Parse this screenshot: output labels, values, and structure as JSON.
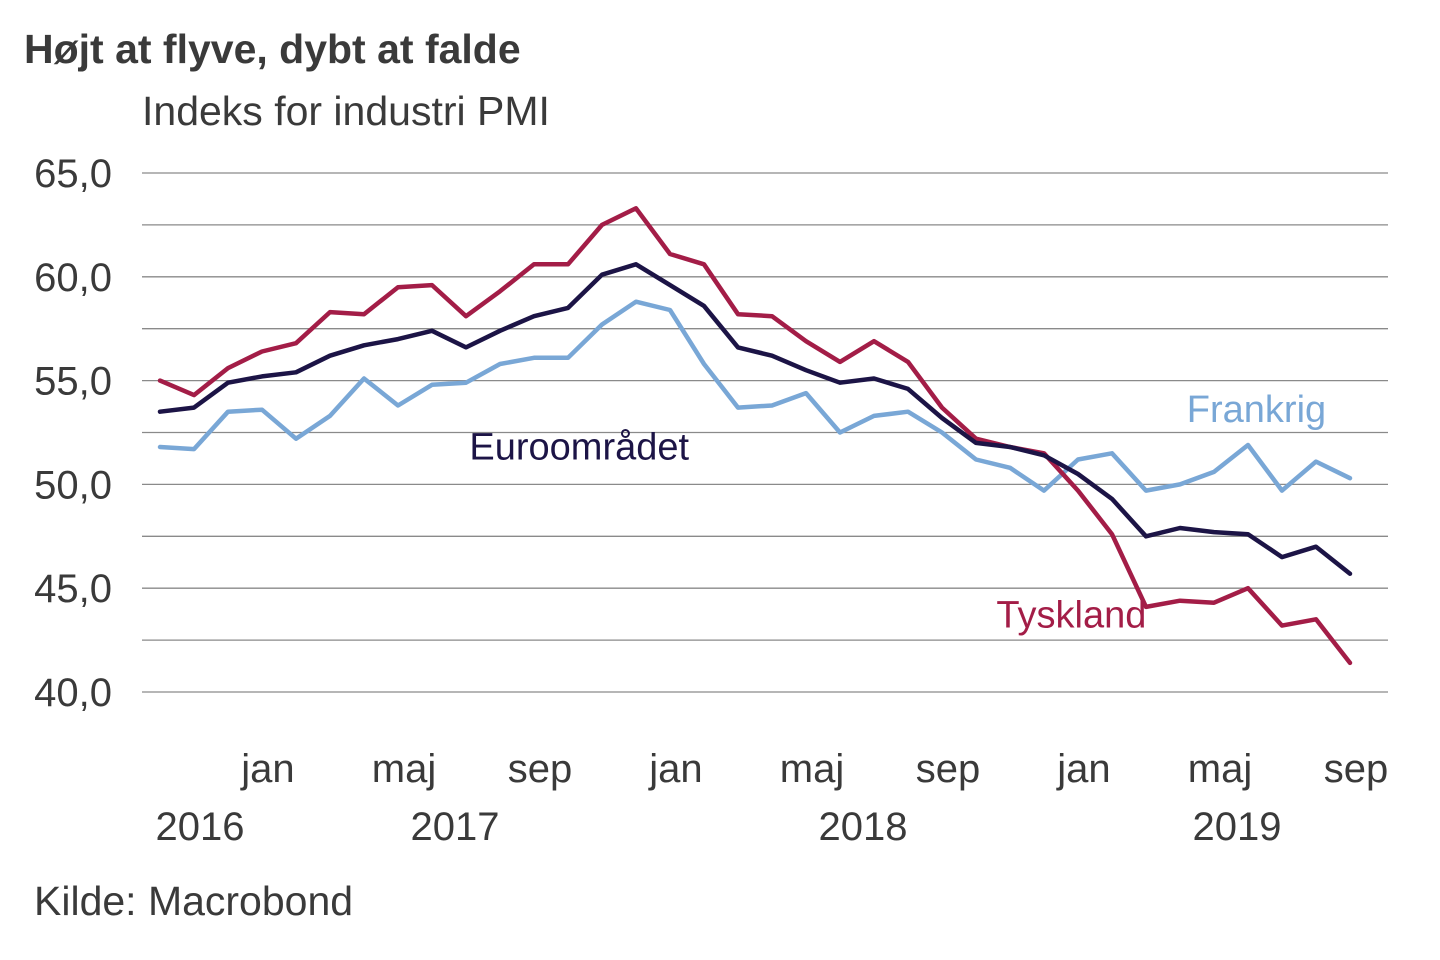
{
  "header": {
    "title": "Højt at flyve, dybt at falde",
    "subtitle": "Indeks for industri PMI"
  },
  "footer": {
    "source": "Kilde: Macrobond"
  },
  "colors": {
    "Euroområdet": "#1c1446",
    "Tyskland": "#a31d47",
    "Frankrig": "#79a7d6",
    "grid": "#8a8a8a",
    "text": "#3a3a3a"
  },
  "chart_data": {
    "type": "line",
    "title": "Højt at flyve, dybt at falde",
    "subtitle": "Indeks for industri PMI",
    "xlabel": "",
    "ylabel": "",
    "ylim": [
      40,
      65
    ],
    "yticks": [
      "40,0",
      "45,0",
      "50,0",
      "55,0",
      "60,0",
      "65,0"
    ],
    "grid": true,
    "x_start": "2016-10",
    "x_end": "2019-09",
    "month_tick_labels": [
      {
        "label": "jan",
        "index": 3
      },
      {
        "label": "maj",
        "index": 7
      },
      {
        "label": "sep",
        "index": 11
      },
      {
        "label": "jan",
        "index": 15
      },
      {
        "label": "maj",
        "index": 19
      },
      {
        "label": "sep",
        "index": 23
      },
      {
        "label": "jan",
        "index": 27
      },
      {
        "label": "maj",
        "index": 31
      },
      {
        "label": "sep",
        "index": 35
      }
    ],
    "year_tick_labels": [
      {
        "label": "2016",
        "index": 1
      },
      {
        "label": "2017",
        "index": 8.5
      },
      {
        "label": "2018",
        "index": 20.5
      },
      {
        "label": "2019",
        "index": 31.5
      }
    ],
    "series": [
      {
        "name": "Euroområdet",
        "label_text": "Euroområdet",
        "label_at": {
          "index": 9.1,
          "value": 51.2
        },
        "values": [
          53.5,
          53.7,
          54.9,
          55.2,
          55.4,
          56.2,
          56.7,
          57.0,
          57.4,
          56.6,
          57.4,
          58.1,
          58.5,
          60.1,
          60.6,
          59.6,
          58.6,
          56.6,
          56.2,
          55.5,
          54.9,
          55.1,
          54.6,
          53.2,
          52.0,
          51.8,
          51.4,
          50.5,
          49.3,
          47.5,
          47.9,
          47.7,
          47.6,
          46.5,
          47.0,
          45.7
        ]
      },
      {
        "name": "Tyskland",
        "label_text": "Tyskland",
        "label_at": {
          "index": 24.6,
          "value": 43.1
        },
        "values": [
          55.0,
          54.3,
          55.6,
          56.4,
          56.8,
          58.3,
          58.2,
          59.5,
          59.6,
          58.1,
          59.3,
          60.6,
          60.6,
          62.5,
          63.3,
          61.1,
          60.6,
          58.2,
          58.1,
          56.9,
          55.9,
          56.9,
          55.9,
          53.7,
          52.2,
          51.8,
          51.5,
          49.7,
          47.6,
          44.1,
          44.4,
          44.3,
          45.0,
          43.2,
          43.5,
          41.4
        ]
      },
      {
        "name": "Frankrig",
        "label_text": "Frankrig",
        "label_at": {
          "index": 30.2,
          "value": 53.0
        },
        "values": [
          51.8,
          51.7,
          53.5,
          53.6,
          52.2,
          53.3,
          55.1,
          53.8,
          54.8,
          54.9,
          55.8,
          56.1,
          56.1,
          57.7,
          58.8,
          58.4,
          55.8,
          53.7,
          53.8,
          54.4,
          52.5,
          53.3,
          53.5,
          52.5,
          51.2,
          50.8,
          49.7,
          51.2,
          51.5,
          49.7,
          50.0,
          50.6,
          51.9,
          49.7,
          51.1,
          50.3
        ]
      }
    ]
  }
}
